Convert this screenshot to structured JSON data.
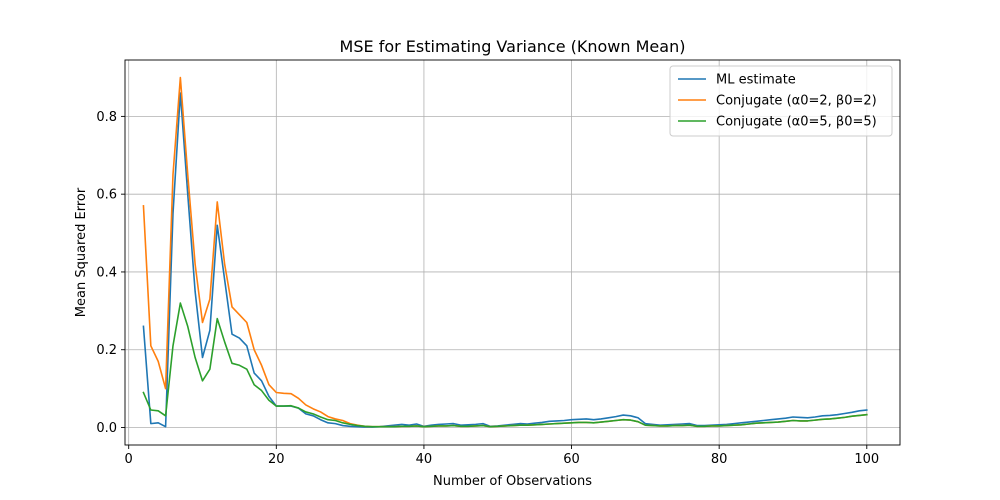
{
  "chart_data": {
    "type": "line",
    "title": "MSE for Estimating Variance (Known Mean)",
    "xlabel": "Number of Observations",
    "ylabel": "Mean Squared Error",
    "xlim": [
      -0.5,
      104.5
    ],
    "ylim": [
      -0.045,
      0.945
    ],
    "xticks": [
      0,
      20,
      40,
      60,
      80,
      100
    ],
    "yticks": [
      0.0,
      0.2,
      0.4,
      0.6,
      0.8
    ],
    "ytick_labels": [
      "0.0",
      "0.2",
      "0.4",
      "0.6",
      "0.8"
    ],
    "grid": true,
    "legend_position": "top-right",
    "x": [
      2,
      3,
      4,
      5,
      6,
      7,
      8,
      9,
      10,
      11,
      12,
      13,
      14,
      15,
      16,
      17,
      18,
      19,
      20,
      21,
      22,
      23,
      24,
      25,
      26,
      27,
      28,
      29,
      30,
      31,
      32,
      33,
      34,
      35,
      36,
      37,
      38,
      39,
      40,
      41,
      42,
      43,
      44,
      45,
      46,
      47,
      48,
      49,
      50,
      51,
      52,
      53,
      54,
      55,
      56,
      57,
      58,
      59,
      60,
      61,
      62,
      63,
      64,
      65,
      66,
      67,
      68,
      69,
      70,
      71,
      72,
      73,
      74,
      75,
      76,
      77,
      78,
      79,
      80,
      81,
      82,
      83,
      84,
      85,
      86,
      87,
      88,
      89,
      90,
      91,
      92,
      93,
      94,
      95,
      96,
      97,
      98,
      99,
      100
    ],
    "series": [
      {
        "name": "ML estimate",
        "color": "#1f77b4",
        "values": [
          0.26,
          0.01,
          0.012,
          0.002,
          0.55,
          0.86,
          0.6,
          0.35,
          0.18,
          0.25,
          0.52,
          0.38,
          0.24,
          0.23,
          0.21,
          0.14,
          0.12,
          0.08,
          0.055,
          0.055,
          0.055,
          0.05,
          0.035,
          0.03,
          0.02,
          0.012,
          0.01,
          0.005,
          0.003,
          0.002,
          0.001,
          0.001,
          0.002,
          0.004,
          0.006,
          0.008,
          0.006,
          0.009,
          0.003,
          0.006,
          0.008,
          0.009,
          0.01,
          0.006,
          0.007,
          0.008,
          0.01,
          0.003,
          0.004,
          0.006,
          0.008,
          0.01,
          0.009,
          0.011,
          0.013,
          0.016,
          0.017,
          0.018,
          0.02,
          0.021,
          0.022,
          0.02,
          0.022,
          0.025,
          0.028,
          0.032,
          0.03,
          0.025,
          0.01,
          0.008,
          0.006,
          0.007,
          0.008,
          0.009,
          0.01,
          0.005,
          0.005,
          0.006,
          0.007,
          0.008,
          0.01,
          0.012,
          0.014,
          0.016,
          0.018,
          0.02,
          0.022,
          0.024,
          0.027,
          0.026,
          0.025,
          0.027,
          0.03,
          0.031,
          0.033,
          0.036,
          0.039,
          0.043,
          0.045
        ]
      },
      {
        "name": "Conjugate (α0=2, β0=2)",
        "color": "#ff7f0e",
        "values": [
          0.57,
          0.21,
          0.17,
          0.1,
          0.65,
          0.9,
          0.65,
          0.42,
          0.27,
          0.33,
          0.58,
          0.42,
          0.31,
          0.29,
          0.27,
          0.2,
          0.16,
          0.11,
          0.09,
          0.088,
          0.087,
          0.075,
          0.058,
          0.048,
          0.04,
          0.028,
          0.022,
          0.018,
          0.01,
          0.006,
          0.003,
          0.002,
          0.002,
          0.002,
          0.002,
          0.003,
          0.003,
          0.004,
          0.002,
          0.003,
          0.004,
          0.004,
          0.005,
          0.003,
          0.003,
          0.004,
          0.005,
          0.002,
          0.003,
          0.004,
          0.005,
          0.006,
          0.006,
          0.007,
          0.008,
          0.009,
          0.01,
          0.011,
          0.012,
          0.013,
          0.013,
          0.012,
          0.014,
          0.016,
          0.018,
          0.02,
          0.019,
          0.015,
          0.006,
          0.005,
          0.004,
          0.004,
          0.005,
          0.005,
          0.006,
          0.003,
          0.003,
          0.004,
          0.004,
          0.005,
          0.006,
          0.007,
          0.009,
          0.011,
          0.012,
          0.013,
          0.014,
          0.016,
          0.018,
          0.017,
          0.017,
          0.019,
          0.021,
          0.022,
          0.024,
          0.026,
          0.029,
          0.031,
          0.033
        ]
      },
      {
        "name": "Conjugate (α0=5, β0=5)",
        "color": "#2ca02c",
        "values": [
          0.09,
          0.045,
          0.043,
          0.03,
          0.21,
          0.32,
          0.26,
          0.18,
          0.12,
          0.15,
          0.28,
          0.22,
          0.165,
          0.16,
          0.15,
          0.11,
          0.095,
          0.07,
          0.055,
          0.055,
          0.056,
          0.05,
          0.04,
          0.035,
          0.027,
          0.02,
          0.018,
          0.012,
          0.008,
          0.005,
          0.003,
          0.002,
          0.002,
          0.002,
          0.002,
          0.003,
          0.003,
          0.004,
          0.002,
          0.003,
          0.004,
          0.004,
          0.005,
          0.003,
          0.003,
          0.004,
          0.005,
          0.002,
          0.003,
          0.004,
          0.005,
          0.006,
          0.006,
          0.007,
          0.008,
          0.009,
          0.01,
          0.011,
          0.012,
          0.013,
          0.013,
          0.012,
          0.014,
          0.016,
          0.018,
          0.02,
          0.019,
          0.015,
          0.006,
          0.005,
          0.004,
          0.004,
          0.005,
          0.005,
          0.006,
          0.003,
          0.003,
          0.004,
          0.004,
          0.005,
          0.006,
          0.007,
          0.009,
          0.011,
          0.012,
          0.013,
          0.014,
          0.016,
          0.018,
          0.017,
          0.017,
          0.019,
          0.021,
          0.022,
          0.024,
          0.026,
          0.029,
          0.031,
          0.033
        ]
      }
    ]
  }
}
